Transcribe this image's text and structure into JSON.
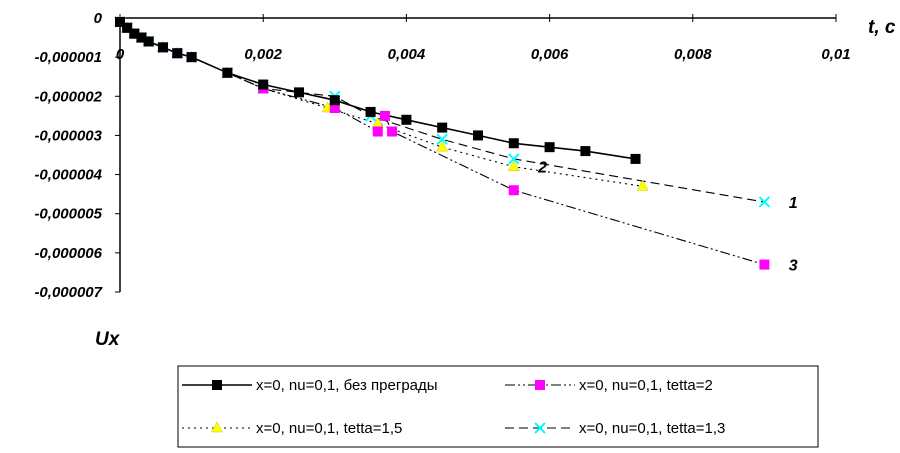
{
  "chart_data": {
    "type": "line",
    "xlabel": "t, c",
    "ylabel": "Ux",
    "xlim": [
      0,
      0.01
    ],
    "ylim": [
      -7e-06,
      0
    ],
    "x_ticks": [
      {
        "value": 0,
        "label": "0"
      },
      {
        "value": 0.002,
        "label": "0,002"
      },
      {
        "value": 0.004,
        "label": "0,004"
      },
      {
        "value": 0.006,
        "label": "0,006"
      },
      {
        "value": 0.008,
        "label": "0,008"
      },
      {
        "value": 0.01,
        "label": "0,01"
      }
    ],
    "y_ticks": [
      {
        "value": 0,
        "label": "0"
      },
      {
        "value": -1e-06,
        "label": "-0,000001"
      },
      {
        "value": -2e-06,
        "label": "-0,000002"
      },
      {
        "value": -3e-06,
        "label": "-0,000003"
      },
      {
        "value": -4e-06,
        "label": "-0,000004"
      },
      {
        "value": -5e-06,
        "label": "-0,000005"
      },
      {
        "value": -6e-06,
        "label": "-0,000006"
      },
      {
        "value": -7e-06,
        "label": "-0,000007"
      }
    ],
    "grid": false,
    "legend_position": "bottom",
    "series": [
      {
        "name": "x=0, nu=0,1, без преграды",
        "color": "#000000",
        "marker": "square",
        "line_style": "solid",
        "x": [
          0,
          0.0001,
          0.0002,
          0.0003,
          0.0004,
          0.0006,
          0.0008,
          0.001,
          0.0015,
          0.002,
          0.0025,
          0.003,
          0.0035,
          0.004,
          0.0045,
          0.005,
          0.0055,
          0.006,
          0.0065,
          0.0072
        ],
        "y": [
          -1e-07,
          -2.5e-07,
          -4e-07,
          -5e-07,
          -6e-07,
          -7.5e-07,
          -9e-07,
          -1e-06,
          -1.4e-06,
          -1.7e-06,
          -1.9e-06,
          -2.1e-06,
          -2.4e-06,
          -2.6e-06,
          -2.8e-06,
          -3e-06,
          -3.2e-06,
          -3.3e-06,
          -3.4e-06,
          -3.6e-06
        ]
      },
      {
        "name": "x=0, nu=0,1, tetta=2",
        "color": "#ff00ff",
        "marker": "square",
        "line_style": "dash-dot-dot",
        "x": [
          0,
          0.0001,
          0.0002,
          0.0003,
          0.0004,
          0.0006,
          0.0008,
          0.001,
          0.0015,
          0.002,
          0.003,
          0.0036,
          0.0037,
          0.0038,
          0.0055,
          0.009
        ],
        "y": [
          -1e-07,
          -2.5e-07,
          -4e-07,
          -5e-07,
          -6e-07,
          -7.5e-07,
          -9e-07,
          -1e-06,
          -1.4e-06,
          -1.8e-06,
          -2.3e-06,
          -2.9e-06,
          -2.5e-06,
          -2.9e-06,
          -4.4e-06,
          -6.3e-06
        ]
      },
      {
        "name": "x=0, nu=0,1, tetta=1,5",
        "color": "#ffff00",
        "marker": "triangle",
        "line_style": "dotted",
        "x": [
          0,
          0.0001,
          0.0002,
          0.0003,
          0.0004,
          0.0006,
          0.0008,
          0.001,
          0.0015,
          0.002,
          0.0029,
          0.0036,
          0.0045,
          0.0055,
          0.0073
        ],
        "y": [
          -1e-07,
          -2.5e-07,
          -4e-07,
          -5e-07,
          -6e-07,
          -7.5e-07,
          -9e-07,
          -1e-06,
          -1.4e-06,
          -1.8e-06,
          -2.3e-06,
          -2.7e-06,
          -3.3e-06,
          -3.8e-06,
          -4.3e-06
        ]
      },
      {
        "name": "x=0, nu=0,1, tetta=1,3",
        "color": "#00ffff",
        "marker": "x",
        "line_style": "long-dash",
        "x": [
          0,
          0.0001,
          0.0002,
          0.0003,
          0.0004,
          0.0006,
          0.0008,
          0.001,
          0.0015,
          0.002,
          0.003,
          0.0035,
          0.0045,
          0.0055,
          0.009
        ],
        "y": [
          -1e-07,
          -2.5e-07,
          -4e-07,
          -5e-07,
          -6e-07,
          -7.5e-07,
          -9e-07,
          -1e-06,
          -1.4e-06,
          -1.8e-06,
          -2e-06,
          -2.5e-06,
          -3.1e-06,
          -3.6e-06,
          -4.7e-06
        ]
      }
    ],
    "annotations": [
      {
        "text": "1",
        "x": 0.0092,
        "y": -4.7e-06
      },
      {
        "text": "2",
        "x": 0.0057,
        "y": -3.8e-06
      },
      {
        "text": "3",
        "x": 0.0092,
        "y": -6.3e-06
      }
    ]
  }
}
